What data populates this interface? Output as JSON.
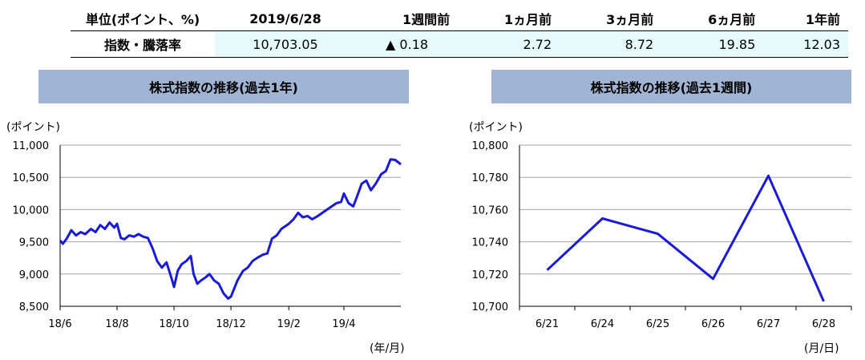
{
  "summary": {
    "unit_label": "単位(ポイント、%)",
    "columns": [
      "2019/6/28",
      "1週間前",
      "1ヵ月前",
      "3ヵ月前",
      "6ヵ月前",
      "1年前"
    ],
    "row_label": "指数・騰落率",
    "values": [
      "10,703.05",
      "▲ 0.18",
      "2.72",
      "8.72",
      "19.85",
      "12.03"
    ]
  },
  "chart_data": [
    {
      "type": "line",
      "title": "株式指数の推移(過去1年)",
      "ylabel": "(ポイント)",
      "xlabel": "(年/月)",
      "ylim": [
        8500,
        11000
      ],
      "yticks": [
        8500,
        9000,
        9500,
        10000,
        10500,
        11000
      ],
      "ytick_labels": [
        "8,500",
        "9,000",
        "9,500",
        "10,000",
        "10,500",
        "11,000"
      ],
      "xticks": [
        {
          "x": "2018-06-28",
          "label": "18/6"
        },
        {
          "x": "2018-08-28",
          "label": "18/8"
        },
        {
          "x": "2018-10-28",
          "label": "18/10"
        },
        {
          "x": "2018-12-28",
          "label": "18/12"
        },
        {
          "x": "2019-02-28",
          "label": "19/2"
        },
        {
          "x": "2019-04-28",
          "label": "19/4"
        }
      ],
      "xlim": [
        "2018-06-28",
        "2019-06-28"
      ],
      "grid": true,
      "line_color": "#1a1adb",
      "series": [
        {
          "points": [
            [
              "2018-06-28",
              9520
            ],
            [
              "2018-07-01",
              9470
            ],
            [
              "2018-07-05",
              9550
            ],
            [
              "2018-07-10",
              9680
            ],
            [
              "2018-07-15",
              9600
            ],
            [
              "2018-07-20",
              9650
            ],
            [
              "2018-07-25",
              9620
            ],
            [
              "2018-07-31",
              9700
            ],
            [
              "2018-08-05",
              9650
            ],
            [
              "2018-08-10",
              9760
            ],
            [
              "2018-08-15",
              9700
            ],
            [
              "2018-08-20",
              9800
            ],
            [
              "2018-08-25",
              9720
            ],
            [
              "2018-08-28",
              9780
            ],
            [
              "2018-09-01",
              9560
            ],
            [
              "2018-09-05",
              9540
            ],
            [
              "2018-09-10",
              9600
            ],
            [
              "2018-09-15",
              9580
            ],
            [
              "2018-09-20",
              9620
            ],
            [
              "2018-09-25",
              9580
            ],
            [
              "2018-09-30",
              9560
            ],
            [
              "2018-10-05",
              9400
            ],
            [
              "2018-10-10",
              9200
            ],
            [
              "2018-10-15",
              9100
            ],
            [
              "2018-10-20",
              9180
            ],
            [
              "2018-10-25",
              8950
            ],
            [
              "2018-10-28",
              8800
            ],
            [
              "2018-11-01",
              9050
            ],
            [
              "2018-11-05",
              9150
            ],
            [
              "2018-11-10",
              9200
            ],
            [
              "2018-11-15",
              9280
            ],
            [
              "2018-11-18",
              9000
            ],
            [
              "2018-11-22",
              8850
            ],
            [
              "2018-11-26",
              8900
            ],
            [
              "2018-12-01",
              8950
            ],
            [
              "2018-12-05",
              9000
            ],
            [
              "2018-12-10",
              8900
            ],
            [
              "2018-12-15",
              8850
            ],
            [
              "2018-12-20",
              8700
            ],
            [
              "2018-12-25",
              8620
            ],
            [
              "2018-12-28",
              8650
            ],
            [
              "2019-01-04",
              8900
            ],
            [
              "2019-01-10",
              9050
            ],
            [
              "2019-01-15",
              9100
            ],
            [
              "2019-01-20",
              9200
            ],
            [
              "2019-01-25",
              9250
            ],
            [
              "2019-01-31",
              9300
            ],
            [
              "2019-02-05",
              9320
            ],
            [
              "2019-02-10",
              9550
            ],
            [
              "2019-02-15",
              9600
            ],
            [
              "2019-02-20",
              9700
            ],
            [
              "2019-02-25",
              9750
            ],
            [
              "2019-02-28",
              9780
            ],
            [
              "2019-03-05",
              9850
            ],
            [
              "2019-03-10",
              9950
            ],
            [
              "2019-03-15",
              9880
            ],
            [
              "2019-03-20",
              9900
            ],
            [
              "2019-03-25",
              9850
            ],
            [
              "2019-03-31",
              9900
            ],
            [
              "2019-04-05",
              9950
            ],
            [
              "2019-04-10",
              10000
            ],
            [
              "2019-04-15",
              10050
            ],
            [
              "2019-04-20",
              10100
            ],
            [
              "2019-04-25",
              10120
            ],
            [
              "2019-04-28",
              10250
            ],
            [
              "2019-05-03",
              10100
            ],
            [
              "2019-05-08",
              10050
            ],
            [
              "2019-05-12",
              10200
            ],
            [
              "2019-05-17",
              10400
            ],
            [
              "2019-05-22",
              10450
            ],
            [
              "2019-05-27",
              10300
            ],
            [
              "2019-06-01",
              10400
            ],
            [
              "2019-06-07",
              10550
            ],
            [
              "2019-06-12",
              10600
            ],
            [
              "2019-06-17",
              10780
            ],
            [
              "2019-06-22",
              10770
            ],
            [
              "2019-06-28",
              10703
            ]
          ]
        }
      ]
    },
    {
      "type": "line",
      "title": "株式指数の推移(過去1週間)",
      "ylabel": "(ポイント)",
      "xlabel": "(月/日)",
      "ylim": [
        10700,
        10800
      ],
      "yticks": [
        10700,
        10720,
        10740,
        10760,
        10780,
        10800
      ],
      "ytick_labels": [
        "10,700",
        "10,720",
        "10,740",
        "10,760",
        "10,780",
        "10,800"
      ],
      "categories": [
        "6/21",
        "6/24",
        "6/25",
        "6/26",
        "6/27",
        "6/28"
      ],
      "grid": true,
      "line_color": "#1a1adb",
      "series": [
        {
          "values": [
            10722.5,
            10754.5,
            10745,
            10717,
            10781,
            10703.05
          ]
        }
      ]
    }
  ]
}
